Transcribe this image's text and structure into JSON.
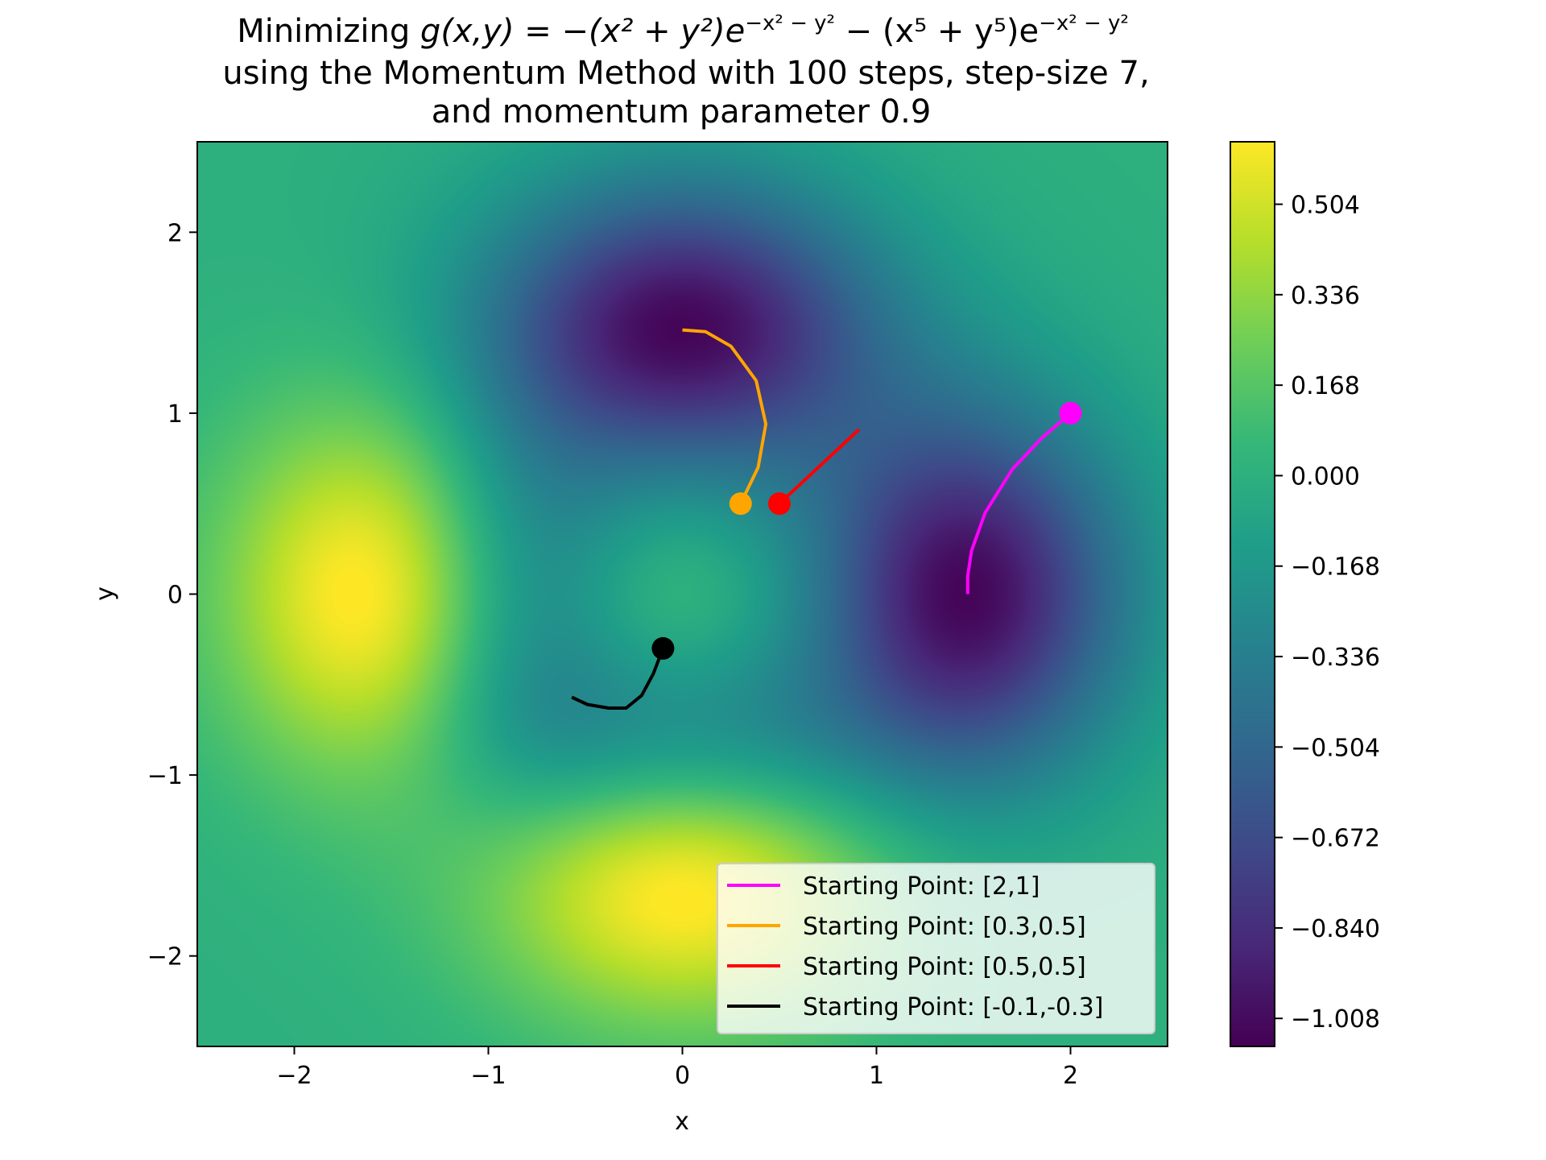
{
  "chart_data": {
    "type": "heatmap",
    "title": {
      "line1_prefix": "Minimizing ",
      "function_lhs": "g(x,y) = −(x² + y²)e",
      "exp1": "−x² − y²",
      "function_mid": " − (x⁵ + y⁵)e",
      "exp2": "−x² − y²",
      "line2": "using the Momentum Method with 100 steps, step-size 7,",
      "line3": "and momentum parameter 0.9"
    },
    "xlabel": "x",
    "ylabel": "y",
    "xlim": [
      -2.5,
      2.5
    ],
    "ylim": [
      -2.5,
      2.5
    ],
    "xticks": [
      {
        "value": -2,
        "label": "−2"
      },
      {
        "value": -1,
        "label": "−1"
      },
      {
        "value": 0,
        "label": "0"
      },
      {
        "value": 1,
        "label": "1"
      },
      {
        "value": 2,
        "label": "2"
      }
    ],
    "yticks": [
      {
        "value": -2,
        "label": "−2"
      },
      {
        "value": -1,
        "label": "−1"
      },
      {
        "value": 0,
        "label": "0"
      },
      {
        "value": 1,
        "label": "1"
      },
      {
        "value": 2,
        "label": "2"
      }
    ],
    "function": "g(x,y) = -(x^2+y^2)exp(-x^2-y^2) - (x^5+y^5)exp(-x^2-y^2)",
    "colormap": "viridis",
    "colorbar": {
      "range": [
        -1.06,
        0.62
      ],
      "ticks": [
        {
          "value": 0.504,
          "label": "0.504"
        },
        {
          "value": 0.336,
          "label": "0.336"
        },
        {
          "value": 0.168,
          "label": "0.168"
        },
        {
          "value": 0.0,
          "label": "0.000"
        },
        {
          "value": -0.168,
          "label": "−0.168"
        },
        {
          "value": -0.336,
          "label": "−0.336"
        },
        {
          "value": -0.504,
          "label": "−0.504"
        },
        {
          "value": -0.672,
          "label": "−0.672"
        },
        {
          "value": -0.84,
          "label": "−0.840"
        },
        {
          "value": -1.008,
          "label": "−1.008"
        }
      ]
    },
    "legend_position": "lower-right",
    "series": [
      {
        "name": "Starting Point: [2,1]",
        "color": "#ff00ff",
        "start": [
          2,
          1
        ],
        "path": [
          [
            2.0,
            1.0
          ],
          [
            1.85,
            0.86
          ],
          [
            1.7,
            0.69
          ],
          [
            1.56,
            0.45
          ],
          [
            1.49,
            0.24
          ],
          [
            1.47,
            0.1
          ],
          [
            1.47,
            0.0
          ]
        ]
      },
      {
        "name": "Starting Point: [0.3,0.5]",
        "color": "#ffa500",
        "start": [
          0.3,
          0.5
        ],
        "path": [
          [
            0.3,
            0.5
          ],
          [
            0.39,
            0.7
          ],
          [
            0.43,
            0.94
          ],
          [
            0.38,
            1.18
          ],
          [
            0.25,
            1.37
          ],
          [
            0.12,
            1.45
          ],
          [
            0.0,
            1.46
          ]
        ]
      },
      {
        "name": "Starting Point: [0.5,0.5]",
        "color": "#ff0000",
        "start": [
          0.5,
          0.5
        ],
        "path": [
          [
            0.5,
            0.5
          ],
          [
            0.91,
            0.91
          ]
        ]
      },
      {
        "name": "Starting Point: [-0.1,-0.3]",
        "color": "#000000",
        "start": [
          -0.1,
          -0.3
        ],
        "path": [
          [
            -0.1,
            -0.3
          ],
          [
            -0.15,
            -0.44
          ],
          [
            -0.21,
            -0.56
          ],
          [
            -0.29,
            -0.63
          ],
          [
            -0.38,
            -0.63
          ],
          [
            -0.49,
            -0.61
          ],
          [
            -0.57,
            -0.57
          ]
        ]
      }
    ]
  }
}
